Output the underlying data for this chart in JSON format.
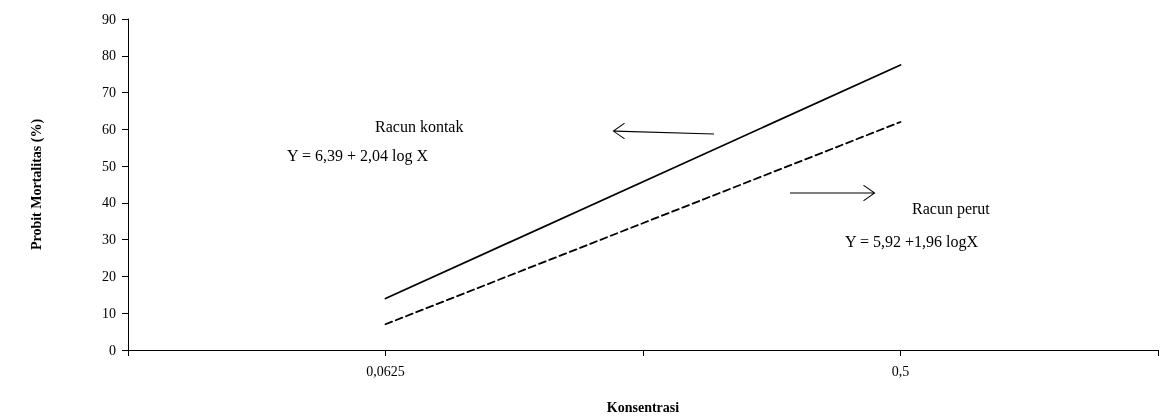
{
  "chart_data": {
    "type": "line",
    "xlabel": "Konsentrasi",
    "ylabel": "Probit Mortalitas (%)",
    "categories": [
      null,
      "0,0625",
      null,
      "0,5",
      null
    ],
    "series": [
      {
        "color": "#000000",
        "line_style": "solid",
        "values": [
          null,
          14,
          null,
          77.5,
          null
        ]
      },
      {
        "color": "#000000",
        "line_style": "dashed",
        "values": [
          null,
          7,
          null,
          62,
          null
        ]
      }
    ],
    "ylim": [
      0,
      90
    ],
    "yticks": [
      0,
      10,
      20,
      30,
      40,
      50,
      60,
      70,
      80,
      90
    ],
    "grid": false,
    "marker": "none",
    "annotations": [
      "Racun kontak",
      "Y = 6,39 + 2,04 log X",
      "Racun perut",
      "Y = 5,92 +1,96 logX"
    ]
  }
}
